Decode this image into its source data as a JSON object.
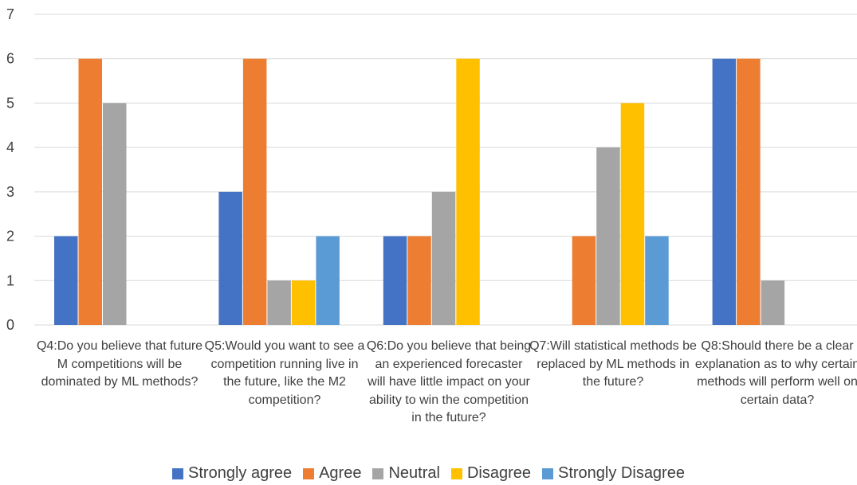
{
  "chart_data": {
    "type": "bar",
    "categories": [
      "Q4:Do you believe that future M competitions will be dominated by ML methods?",
      "Q5:Would you want to see a competition running live in the future, like the M2 competition?",
      "Q6:Do you believe that being an experienced forecaster will have little impact on your ability to win the competition in the future?",
      "Q7:Will statistical methods be replaced by ML methods in the future?",
      "Q8:Should there be a clear explanation as to why certain methods will perform well on certain data?"
    ],
    "series": [
      {
        "name": "Strongly agree",
        "color": "#4472C4",
        "values": [
          2,
          3,
          2,
          0,
          6
        ]
      },
      {
        "name": "Agree",
        "color": "#ED7D31",
        "values": [
          6,
          6,
          2,
          2,
          6
        ]
      },
      {
        "name": "Neutral",
        "color": "#A5A5A5",
        "values": [
          5,
          1,
          3,
          4,
          1
        ]
      },
      {
        "name": "Disagree",
        "color": "#FFC000",
        "values": [
          0,
          1,
          6,
          5,
          0
        ]
      },
      {
        "name": "Strongly Disagree",
        "color": "#5B9BD5",
        "values": [
          0,
          2,
          0,
          2,
          0
        ]
      }
    ],
    "ylim": [
      0,
      7
    ],
    "yticks": [
      "0",
      "1",
      "2",
      "3",
      "4",
      "5",
      "6",
      "7"
    ],
    "grid": true,
    "legend_position": "bottom",
    "title": "",
    "xlabel": "",
    "ylabel": ""
  }
}
